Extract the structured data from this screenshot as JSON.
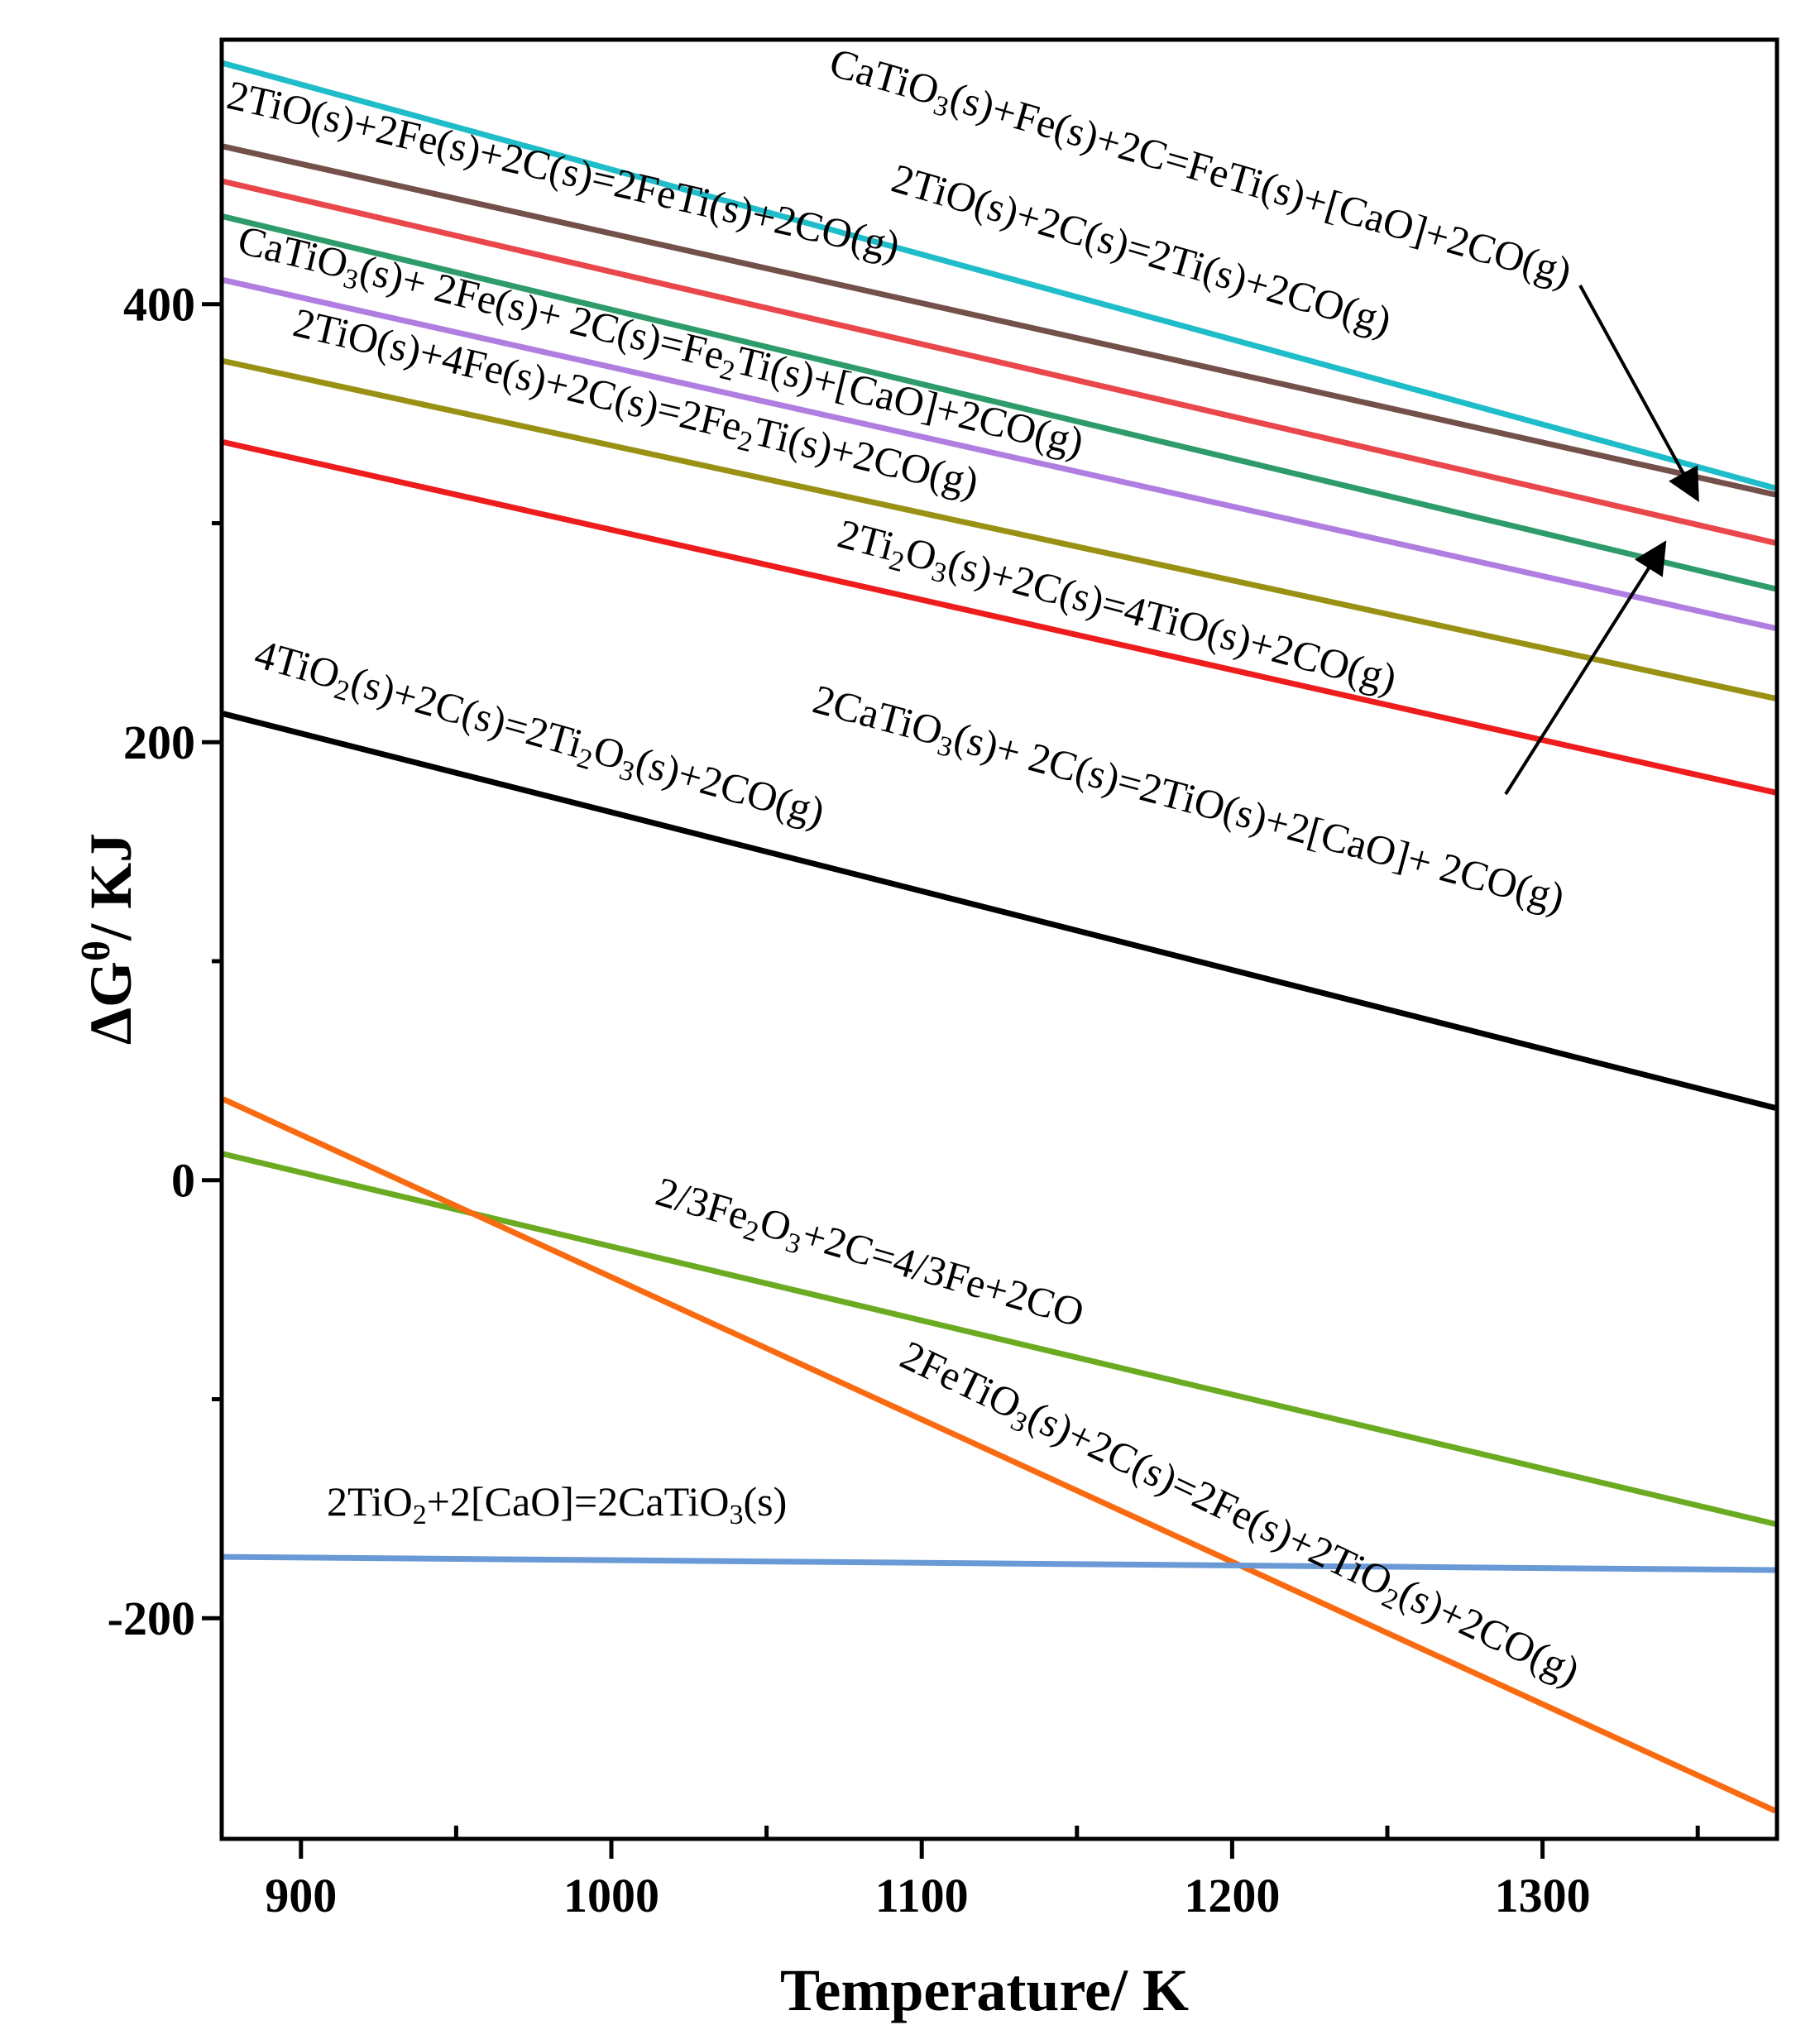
{
  "chart_data": {
    "type": "line",
    "xlabel": "Temperature/ K",
    "ylabel_main": "ΔG",
    "ylabel_sup": "θ",
    "ylabel_rest": "/ KJ",
    "xlim": [
      875,
      1375
    ],
    "ylim": [
      -300,
      520
    ],
    "x_ticks": [
      900,
      1000,
      1100,
      1200,
      1300
    ],
    "x_minor_ticks": [
      950,
      1050,
      1150,
      1250,
      1350
    ],
    "y_ticks": [
      -200,
      0,
      200,
      400
    ],
    "y_minor_ticks": [
      -100,
      100,
      300
    ],
    "series": [
      {
        "name": "CaTiO3(s)+Fe(s)+2C=FeTi(s)+[CaO]+2CO(g)",
        "color": "#1fbcc9",
        "x": [
          875,
          1375
        ],
        "y": [
          510,
          316
        ]
      },
      {
        "name": "2TiO(s)+2Fe(s)+2C(s)=2FeTi(s)+2CO(g)",
        "color": "#74504a",
        "x": [
          875,
          1375
        ],
        "y": [
          472,
          313
        ]
      },
      {
        "name": "2TiO(s)+2C(s)=2Ti(s)+2CO(g)",
        "color": "#e9474b",
        "x": [
          875,
          1375
        ],
        "y": [
          456,
          291
        ]
      },
      {
        "name": "2CaTiO3(s)+ 2C(s)=2TiO(s)+2[CaO]+ 2CO(g)",
        "color": "#2e9c6a",
        "x": [
          875,
          1375
        ],
        "y": [
          440,
          270
        ]
      },
      {
        "name": "CaTiO3(s)+ 2Fe(s)+ 2C(s)=Fe2Ti(s)+[CaO]+2CO(g)",
        "color": "#b07ee0",
        "x": [
          875,
          1375
        ],
        "y": [
          411,
          252
        ]
      },
      {
        "name": "2TiO(s)+4Fe(s)+2C(s)=2Fe2Ti(s)+2CO(g)",
        "color": "#999114",
        "x": [
          875,
          1375
        ],
        "y": [
          374,
          220
        ]
      },
      {
        "name": "2Ti2O3(s)+2C(s)=4TiO(s)+2CO(g)",
        "color": "#ee1c1c",
        "x": [
          875,
          1375
        ],
        "y": [
          337,
          177
        ]
      },
      {
        "name": "4TiO2(s)+2C(s)=2Ti2O3(s)+2CO(g)",
        "color": "#000000",
        "x": [
          875,
          1375
        ],
        "y": [
          213,
          33
        ]
      },
      {
        "name": "2/3Fe2O3+2C=4/3Fe+2CO",
        "color": "#6aab22",
        "x": [
          875,
          1375
        ],
        "y": [
          12,
          -157
        ]
      },
      {
        "name": "2FeTiO3(s)+2C(s)=2Fe(s)+2TiO2(s)+2CO(g)",
        "color": "#fa6a10",
        "x": [
          875,
          1375
        ],
        "y": [
          37,
          -288
        ]
      },
      {
        "name": "2TiO2+2[CaO]=2CaTiO3(s)",
        "color": "#6a9ad6",
        "x": [
          875,
          1375
        ],
        "y": [
          -172,
          -178
        ]
      }
    ],
    "labels": [
      {
        "for": 0,
        "parts": [
          [
            "CaTiO",
            ""
          ],
          [
            "3",
            "sub"
          ],
          [
            "(s)+Fe(s)+2C=FeTi(s)+[CaO]+2CO(g)",
            ""
          ]
        ]
      },
      {
        "for": 1,
        "parts": [
          [
            "2TiO(s)+2Fe(s)+2C(s)=2FeTi(s)+2CO(g)",
            ""
          ]
        ]
      },
      {
        "for": 2,
        "parts": [
          [
            "2TiO(s)+2C(s)=2Ti(s)+2CO(g)",
            ""
          ]
        ]
      },
      {
        "for": 4,
        "parts": [
          [
            "CaTiO",
            ""
          ],
          [
            "3",
            "sub"
          ],
          [
            "(s)+ 2Fe(s)+ 2C(s)=Fe",
            ""
          ],
          [
            "2",
            "sub"
          ],
          [
            "Ti(s)+[CaO]+2CO(g)",
            ""
          ]
        ]
      },
      {
        "for": 5,
        "parts": [
          [
            "2TiO(s)+4Fe(s)+2C(s)=2Fe",
            ""
          ],
          [
            "2",
            "sub"
          ],
          [
            "Ti(s)+2CO(g)",
            ""
          ]
        ]
      },
      {
        "for": 6,
        "parts": [
          [
            "2Ti",
            ""
          ],
          [
            "2",
            "sub"
          ],
          [
            "O",
            ""
          ],
          [
            "3",
            "sub"
          ],
          [
            "(s)+2C(s)=4TiO(s)+2CO(g)",
            ""
          ]
        ]
      },
      {
        "for": 3,
        "parts": [
          [
            "2CaTiO",
            ""
          ],
          [
            "3",
            "sub"
          ],
          [
            "(s)+ 2C(s)=2TiO(s)+2[CaO]+ 2CO(g)",
            ""
          ]
        ]
      },
      {
        "for": 7,
        "parts": [
          [
            "4TiO",
            ""
          ],
          [
            "2",
            "sub"
          ],
          [
            "(s)+2C(s)=2Ti",
            ""
          ],
          [
            "2",
            "sub"
          ],
          [
            "O",
            ""
          ],
          [
            "3",
            "sub"
          ],
          [
            "(s)+2CO(g)",
            ""
          ]
        ]
      },
      {
        "for": 8,
        "parts": [
          [
            "2/3Fe",
            ""
          ],
          [
            "2",
            "sub"
          ],
          [
            "O",
            ""
          ],
          [
            "3",
            "sub"
          ],
          [
            "+2C=4/3Fe+2CO",
            ""
          ]
        ]
      },
      {
        "for": 9,
        "parts": [
          [
            "2FeTiO",
            ""
          ],
          [
            "3",
            "sub"
          ],
          [
            "(s)+2C(s)=2Fe(s)+2TiO",
            ""
          ],
          [
            "2",
            "sub"
          ],
          [
            "(s)+2CO(g)",
            ""
          ]
        ]
      },
      {
        "for": 10,
        "parts": [
          [
            "2TiO",
            ""
          ],
          [
            "2",
            "sub"
          ],
          [
            "+2[CaO]=2CaTiO",
            ""
          ],
          [
            "3",
            "sub"
          ],
          [
            "(s)",
            ""
          ]
        ]
      }
    ]
  }
}
